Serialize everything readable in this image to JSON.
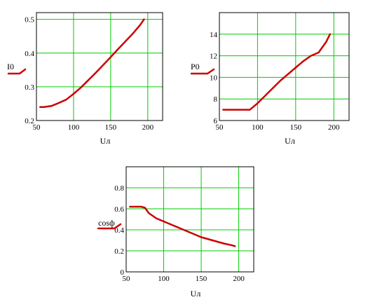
{
  "chart_data": [
    {
      "type": "line",
      "xlabel": "Uл",
      "ylabel": "I0",
      "xlim": [
        50,
        220
      ],
      "ylim": [
        0.2,
        0.52
      ],
      "xticks": [
        "50",
        "100",
        "150",
        "200"
      ],
      "yticks": [
        "0.2",
        "0.3",
        "0.4",
        "0.5"
      ],
      "grid": true,
      "series": [
        {
          "color": "#cc0000",
          "x": [
            55,
            60,
            70,
            80,
            90,
            100,
            110,
            120,
            130,
            140,
            150,
            160,
            170,
            180,
            190,
            195
          ],
          "y": [
            0.24,
            0.24,
            0.243,
            0.252,
            0.262,
            0.279,
            0.298,
            0.32,
            0.342,
            0.365,
            0.388,
            0.412,
            0.435,
            0.458,
            0.484,
            0.5
          ]
        }
      ]
    },
    {
      "type": "line",
      "xlabel": "Uл",
      "ylabel": "P0",
      "xlim": [
        50,
        220
      ],
      "ylim": [
        6,
        16
      ],
      "xticks": [
        "50",
        "100",
        "150",
        "200"
      ],
      "yticks": [
        "6",
        "8",
        "10",
        "12",
        "14"
      ],
      "grid": true,
      "series": [
        {
          "color": "#cc0000",
          "x": [
            55,
            70,
            80,
            90,
            100,
            110,
            120,
            130,
            140,
            150,
            160,
            170,
            180,
            190,
            195
          ],
          "y": [
            7.0,
            7.0,
            7.0,
            7.0,
            7.6,
            8.3,
            9.0,
            9.7,
            10.3,
            10.9,
            11.5,
            12.0,
            12.3,
            13.3,
            14.0
          ]
        }
      ]
    },
    {
      "type": "line",
      "xlabel": "Uл",
      "ylabel": "cosф",
      "xlim": [
        50,
        220
      ],
      "ylim": [
        0,
        1
      ],
      "xticks": [
        "50",
        "100",
        "150",
        "200"
      ],
      "yticks": [
        "0",
        "0.2",
        "0.4",
        "0.6",
        "0.8"
      ],
      "grid": true,
      "series": [
        {
          "color": "#cc0000",
          "x": [
            55,
            60,
            70,
            75,
            80,
            90,
            100,
            110,
            120,
            130,
            140,
            150,
            160,
            170,
            180,
            190,
            195
          ],
          "y": [
            0.62,
            0.62,
            0.62,
            0.61,
            0.56,
            0.51,
            0.48,
            0.45,
            0.42,
            0.39,
            0.36,
            0.33,
            0.31,
            0.29,
            0.27,
            0.255,
            0.245
          ]
        }
      ]
    }
  ],
  "colors": {
    "grid": "#00cc00",
    "frame": "#000000",
    "trace": "#cc0000"
  }
}
